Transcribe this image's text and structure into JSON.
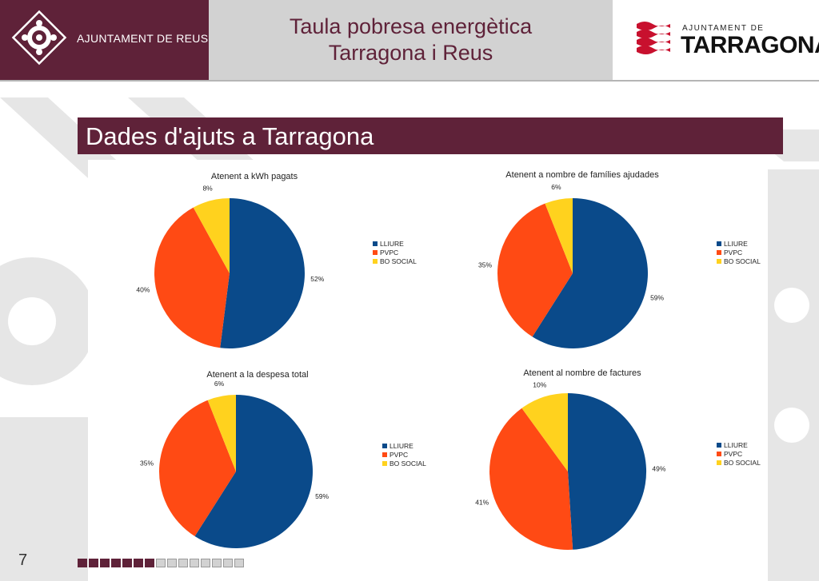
{
  "header": {
    "org_left": "AJUNTAMENT DE REUS",
    "title_lines": [
      "Taula pobresa energètica",
      "Tarragona i Reus"
    ],
    "org_right_small": "AJUNTAMENT DE",
    "org_right_big": "TARRAGONA"
  },
  "section_title": "Dades d'ajuts a Tarragona",
  "colors": {
    "brand": "#5f2239",
    "header_gray": "#d2d2d2",
    "LLIURE": "#0a4a8a",
    "PVPC": "#ff4a14",
    "BO SOCIAL": "#ffd21e"
  },
  "chart_data": [
    {
      "type": "pie",
      "title": "Atenent a kWh pagats",
      "categories": [
        "LLIURE",
        "PVPC",
        "BO SOCIAL"
      ],
      "values": [
        52,
        40,
        8
      ],
      "labels": [
        "52%",
        "40%",
        "8%"
      ],
      "legend": "right"
    },
    {
      "type": "pie",
      "title": "Atenent a nombre de famílies ajudades",
      "categories": [
        "LLIURE",
        "PVPC",
        "BO SOCIAL"
      ],
      "values": [
        59,
        35,
        6
      ],
      "labels": [
        "59%",
        "35%",
        "6%"
      ],
      "legend": "right"
    },
    {
      "type": "pie",
      "title": "Atenent a la despesa total",
      "categories": [
        "LLIURE",
        "PVPC",
        "BO SOCIAL"
      ],
      "values": [
        59,
        35,
        6
      ],
      "labels": [
        "59%",
        "35%",
        "6%"
      ],
      "legend": "right"
    },
    {
      "type": "pie",
      "title": "Atenent al nombre de factures",
      "categories": [
        "LLIURE",
        "PVPC",
        "BO SOCIAL"
      ],
      "values": [
        49,
        41,
        10
      ],
      "labels": [
        "49%",
        "41%",
        "10%"
      ],
      "legend": "right"
    }
  ],
  "footer": {
    "page_number": "7",
    "progress_filled": 7,
    "progress_total": 15
  }
}
